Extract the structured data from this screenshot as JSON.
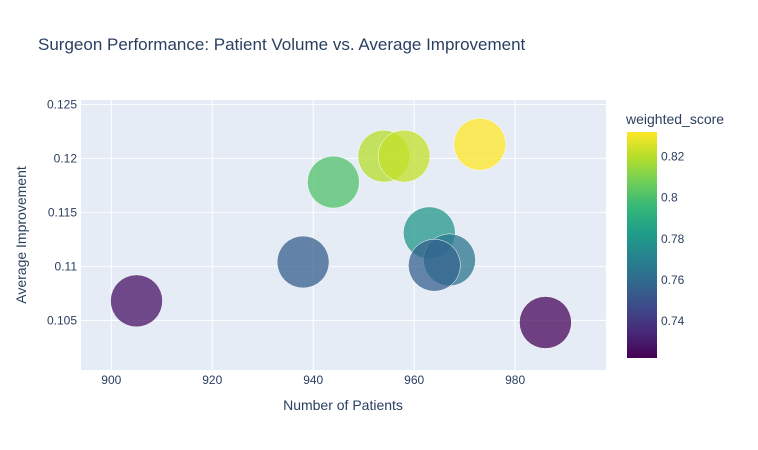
{
  "chart_data": {
    "type": "scatter",
    "title": "Surgeon Performance: Patient Volume vs. Average Improvement",
    "xlabel": "Number of Patients",
    "ylabel": "Average Improvement",
    "xlim": [
      894,
      998
    ],
    "ylim": [
      0.1004,
      0.1254
    ],
    "x_ticks": [
      900,
      920,
      940,
      960,
      980
    ],
    "y_ticks": [
      0.105,
      0.11,
      0.115,
      0.12,
      0.125
    ],
    "y_tick_labels": [
      "0.105",
      "0.11",
      "0.115",
      "0.12",
      "0.125"
    ],
    "grid": true,
    "colorbar": {
      "title": "weighted_score",
      "range": [
        0.722,
        0.832
      ],
      "ticks": [
        0.74,
        0.76,
        0.78,
        0.8,
        0.82
      ],
      "tick_labels": [
        "0.74",
        "0.76",
        "0.78",
        "0.8",
        "0.82"
      ],
      "colorscale": "Viridis"
    },
    "points": [
      {
        "x": 905,
        "y": 0.1068,
        "weighted_score": 0.727
      },
      {
        "x": 938,
        "y": 0.1104,
        "weighted_score": 0.755
      },
      {
        "x": 944,
        "y": 0.1178,
        "weighted_score": 0.801
      },
      {
        "x": 954,
        "y": 0.1202,
        "weighted_score": 0.82
      },
      {
        "x": 958,
        "y": 0.1202,
        "weighted_score": 0.822
      },
      {
        "x": 963,
        "y": 0.1131,
        "weighted_score": 0.78
      },
      {
        "x": 967,
        "y": 0.1106,
        "weighted_score": 0.765
      },
      {
        "x": 964,
        "y": 0.1101,
        "weighted_score": 0.756
      },
      {
        "x": 973,
        "y": 0.1213,
        "weighted_score": 0.832
      },
      {
        "x": 986,
        "y": 0.1048,
        "weighted_score": 0.724
      }
    ]
  }
}
